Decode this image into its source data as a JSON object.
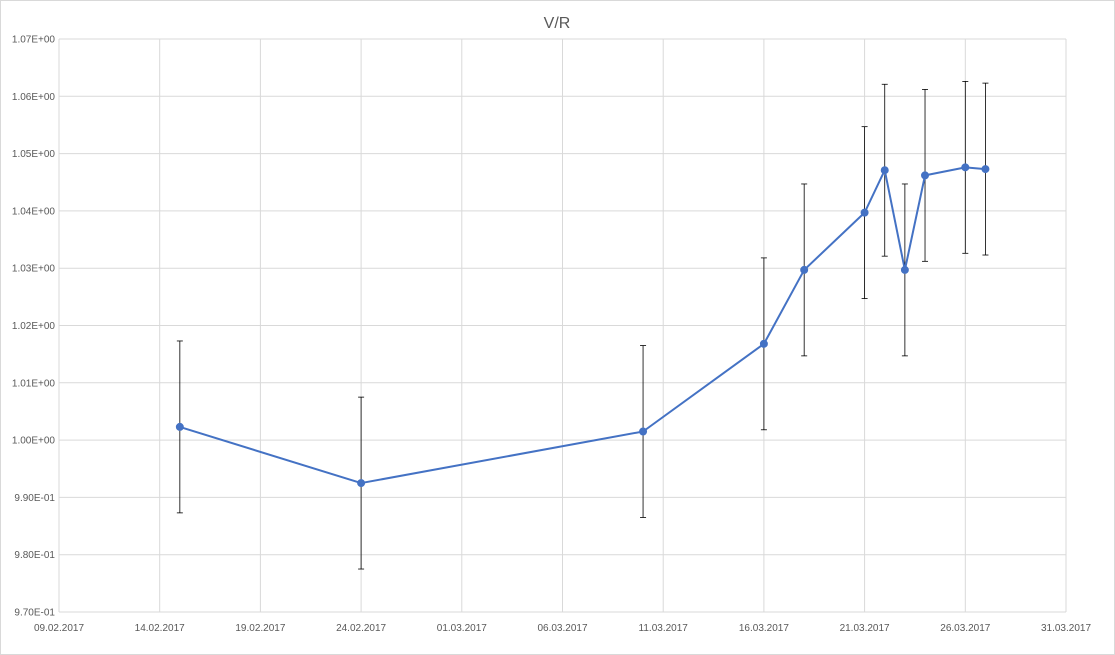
{
  "chart_data": {
    "type": "scatter",
    "title": "V/R",
    "xlabel": "",
    "ylabel": "",
    "x_axis_type": "date",
    "x_ticks": [
      "09.02.2017",
      "14.02.2017",
      "19.02.2017",
      "24.02.2017",
      "01.03.2017",
      "06.03.2017",
      "11.03.2017",
      "16.03.2017",
      "21.03.2017",
      "26.03.2017",
      "31.03.2017"
    ],
    "xlim": [
      "2017-02-09",
      "2017-03-31"
    ],
    "ylim": [
      0.97,
      1.07
    ],
    "y_ticks": [
      "9.70E-01",
      "9.80E-01",
      "9.90E-01",
      "1.00E+00",
      "1.01E+00",
      "1.02E+00",
      "1.03E+00",
      "1.04E+00",
      "1.05E+00",
      "1.06E+00",
      "1.07E+00"
    ],
    "y_tick_values": [
      0.97,
      0.98,
      0.99,
      1.0,
      1.01,
      1.02,
      1.03,
      1.04,
      1.05,
      1.06,
      1.07
    ],
    "grid": true,
    "legend": "none",
    "series": [
      {
        "color": "#4472c4",
        "marker": "circle",
        "line": true,
        "points": [
          {
            "x": "2017-02-15",
            "y": 1.0023,
            "err": 0.015
          },
          {
            "x": "2017-02-24",
            "y": 0.9925,
            "err": 0.015
          },
          {
            "x": "2017-03-10",
            "y": 1.0015,
            "err": 0.015
          },
          {
            "x": "2017-03-16",
            "y": 1.0168,
            "err": 0.015
          },
          {
            "x": "2017-03-18",
            "y": 1.0297,
            "err": 0.015
          },
          {
            "x": "2017-03-21",
            "y": 1.0397,
            "err": 0.015
          },
          {
            "x": "2017-03-22",
            "y": 1.0471,
            "err": 0.015
          },
          {
            "x": "2017-03-23",
            "y": 1.0297,
            "err": 0.015
          },
          {
            "x": "2017-03-24",
            "y": 1.0462,
            "err": 0.015
          },
          {
            "x": "2017-03-26",
            "y": 1.0476,
            "err": 0.015
          },
          {
            "x": "2017-03-27",
            "y": 1.0473,
            "err": 0.015
          }
        ]
      }
    ],
    "colors": {
      "gridline": "#d9d9d9",
      "axis_text": "#595959",
      "error_bar": "#000000"
    }
  }
}
